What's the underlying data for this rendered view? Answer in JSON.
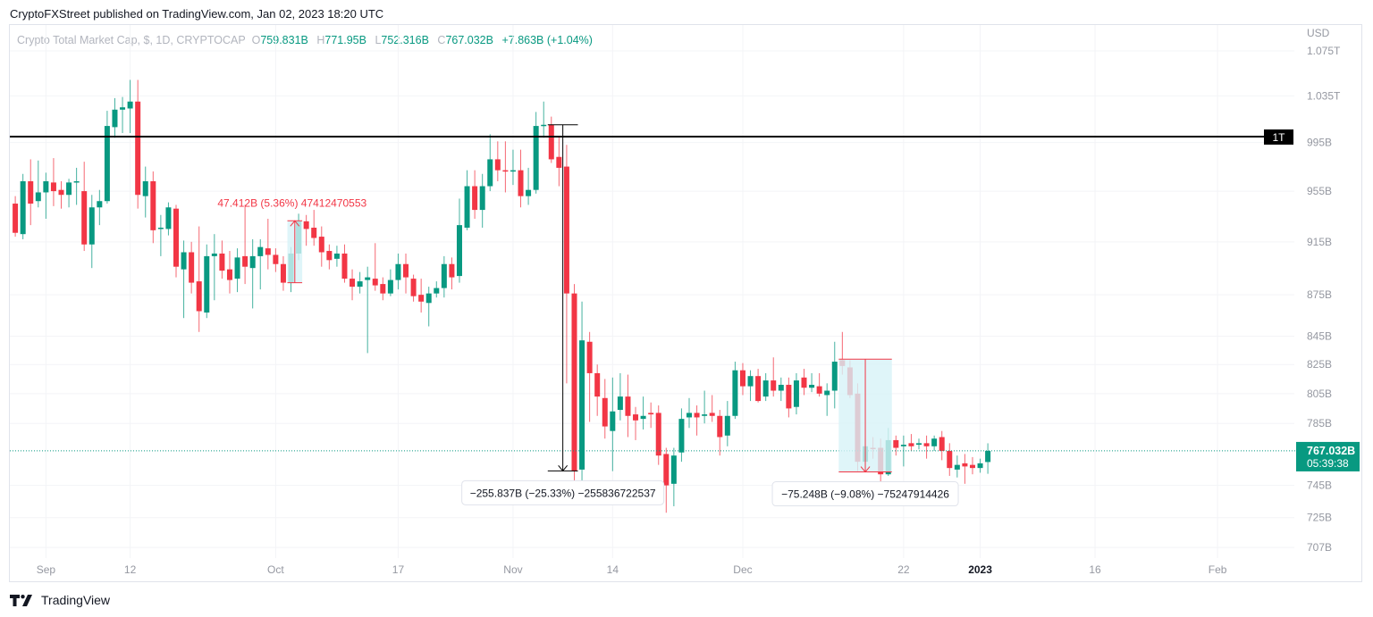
{
  "header": {
    "published": "CryptoFXStreet published on TradingView.com, Jan 02, 2023 18:20 UTC"
  },
  "legend": {
    "symbol": "Crypto Total Market Cap, $, 1D, CRYPTOCAP",
    "o_label": "O",
    "o_value": "759.831B",
    "h_label": "H",
    "h_value": "771.95B",
    "l_label": "L",
    "l_value": "752.316B",
    "c_label": "C",
    "c_value": "767.032B",
    "change": "+7.863B (+1.04%)"
  },
  "axis": {
    "currency": "USD"
  },
  "footer": {
    "brand": "TradingView"
  },
  "colors": {
    "up": "#089981",
    "down": "#f23645",
    "level_line": "#000000",
    "measure_fill": "#d7f3f8"
  },
  "chart_data": {
    "type": "candlestick",
    "interval": "1D",
    "y_scale": "log",
    "grid": "faint",
    "y_ticks": [
      {
        "value": 1075,
        "label": "1.075T"
      },
      {
        "value": 1035,
        "label": "1.035T"
      },
      {
        "value": 995,
        "label": "995B"
      },
      {
        "value": 955,
        "label": "955B"
      },
      {
        "value": 915,
        "label": "915B"
      },
      {
        "value": 875,
        "label": "875B"
      },
      {
        "value": 845,
        "label": "845B"
      },
      {
        "value": 825,
        "label": "825B"
      },
      {
        "value": 805,
        "label": "805B"
      },
      {
        "value": 785,
        "label": "785B"
      },
      {
        "value": 745,
        "label": "745B"
      },
      {
        "value": 725,
        "label": "725B"
      },
      {
        "value": 707,
        "label": "707B"
      }
    ],
    "x_ticks": [
      {
        "label": "Sep",
        "date": "2022-09-01"
      },
      {
        "label": "12",
        "date": "2022-09-12"
      },
      {
        "label": "Oct",
        "date": "2022-10-01"
      },
      {
        "label": "17",
        "date": "2022-10-17"
      },
      {
        "label": "Nov",
        "date": "2022-11-01"
      },
      {
        "label": "14",
        "date": "2022-11-14"
      },
      {
        "label": "Dec",
        "date": "2022-12-01"
      },
      {
        "label": "22",
        "date": "2022-12-22"
      },
      {
        "label": "2023",
        "date": "2023-01-01",
        "bold": true
      },
      {
        "label": "16",
        "date": "2023-01-16"
      },
      {
        "label": "Feb",
        "date": "2023-02-01"
      }
    ],
    "horizontal_level": {
      "value": 1000,
      "label": "1T"
    },
    "last_price": {
      "value": 767.032,
      "label": "767.032B",
      "countdown": "05:39:38"
    },
    "measurements": [
      {
        "from_date": "2022-10-03",
        "to_date": "2022-10-04",
        "from_value": 884,
        "to_value": 931.4,
        "label": "47.412B (5.36%) 47412470553",
        "color": "#f23645"
      },
      {
        "from_date": "2022-11-06",
        "to_date": "2022-11-09",
        "from_value": 1010,
        "to_value": 754.2,
        "label": "−255.837B (−25.33%) −255836722537",
        "color": "#000000"
      },
      {
        "from_date": "2022-12-14",
        "to_date": "2022-12-20",
        "from_value": 828.7,
        "to_value": 753.5,
        "label": "−75.248B (−9.08%) −75247914426",
        "color": "#f23645"
      }
    ],
    "candles_columns": [
      "date",
      "open",
      "high",
      "low",
      "close"
    ],
    "candles": [
      [
        "2022-08-28",
        945,
        951,
        919,
        922
      ],
      [
        "2022-08-29",
        921,
        969,
        917,
        963
      ],
      [
        "2022-08-30",
        963,
        981,
        928,
        945
      ],
      [
        "2022-08-31",
        947,
        980,
        942,
        954
      ],
      [
        "2022-09-01",
        954,
        970,
        933,
        963
      ],
      [
        "2022-09-02",
        962,
        982,
        943,
        955
      ],
      [
        "2022-09-03",
        956,
        963,
        941,
        952
      ],
      [
        "2022-09-04",
        952,
        965,
        942,
        962
      ],
      [
        "2022-09-05",
        962,
        974,
        944,
        963
      ],
      [
        "2022-09-06",
        955,
        979,
        908,
        913
      ],
      [
        "2022-09-07",
        913,
        952,
        895,
        942
      ],
      [
        "2022-09-08",
        942,
        956,
        928,
        947
      ],
      [
        "2022-09-09",
        947,
        1022,
        945,
        1009
      ],
      [
        "2022-09-10",
        1008,
        1033,
        999,
        1023
      ],
      [
        "2022-09-11",
        1023,
        1034,
        1003,
        1025
      ],
      [
        "2022-09-12",
        1024,
        1049,
        1003,
        1030
      ],
      [
        "2022-09-13",
        1030,
        1049,
        941,
        952
      ],
      [
        "2022-09-14",
        951,
        975,
        934,
        963
      ],
      [
        "2022-09-15",
        963,
        971,
        914,
        924
      ],
      [
        "2022-09-16",
        925,
        936,
        904,
        926
      ],
      [
        "2022-09-17",
        925,
        946,
        920,
        942
      ],
      [
        "2022-09-18",
        941,
        944,
        888,
        896
      ],
      [
        "2022-09-19",
        894,
        916,
        858,
        907
      ],
      [
        "2022-09-20",
        907,
        915,
        876,
        884
      ],
      [
        "2022-09-21",
        885,
        927,
        848,
        863
      ],
      [
        "2022-09-22",
        862,
        913,
        858,
        904
      ],
      [
        "2022-09-23",
        904,
        921,
        871,
        906
      ],
      [
        "2022-09-24",
        906,
        916,
        887,
        893
      ],
      [
        "2022-09-25",
        894,
        908,
        876,
        886
      ],
      [
        "2022-09-26",
        887,
        910,
        877,
        903
      ],
      [
        "2022-09-27",
        904,
        944,
        883,
        896
      ],
      [
        "2022-09-28",
        895,
        917,
        865,
        904
      ],
      [
        "2022-09-29",
        904,
        917,
        879,
        911
      ],
      [
        "2022-09-30",
        910,
        933,
        894,
        905
      ],
      [
        "2022-10-01",
        905,
        910,
        892,
        898
      ],
      [
        "2022-10-02",
        898,
        904,
        878,
        884
      ],
      [
        "2022-10-03",
        884,
        911,
        877,
        906
      ],
      [
        "2022-10-04",
        906,
        937,
        901,
        931
      ],
      [
        "2022-10-05",
        931,
        936,
        912,
        925
      ],
      [
        "2022-10-06",
        926,
        940,
        912,
        918
      ],
      [
        "2022-10-07",
        919,
        927,
        896,
        907
      ],
      [
        "2022-10-08",
        908,
        913,
        894,
        901
      ],
      [
        "2022-10-09",
        902,
        912,
        896,
        906
      ],
      [
        "2022-10-10",
        906,
        913,
        884,
        887
      ],
      [
        "2022-10-11",
        887,
        894,
        871,
        881
      ],
      [
        "2022-10-12",
        881,
        892,
        876,
        885
      ],
      [
        "2022-10-13",
        886,
        896,
        833,
        888
      ],
      [
        "2022-10-14",
        887,
        914,
        878,
        882
      ],
      [
        "2022-10-15",
        883,
        888,
        871,
        876
      ],
      [
        "2022-10-16",
        876,
        894,
        874,
        886
      ],
      [
        "2022-10-17",
        886,
        906,
        879,
        898
      ],
      [
        "2022-10-18",
        898,
        906,
        876,
        888
      ],
      [
        "2022-10-19",
        887,
        890,
        870,
        874
      ],
      [
        "2022-10-20",
        875,
        887,
        862,
        870
      ],
      [
        "2022-10-21",
        869,
        881,
        852,
        876
      ],
      [
        "2022-10-22",
        876,
        885,
        873,
        880
      ],
      [
        "2022-10-23",
        880,
        904,
        873,
        898
      ],
      [
        "2022-10-24",
        898,
        903,
        879,
        888
      ],
      [
        "2022-10-25",
        889,
        949,
        884,
        928
      ],
      [
        "2022-10-26",
        926,
        972,
        924,
        959
      ],
      [
        "2022-10-27",
        959,
        972,
        933,
        940
      ],
      [
        "2022-10-28",
        940,
        969,
        926,
        959
      ],
      [
        "2022-10-29",
        959,
        1002,
        955,
        981
      ],
      [
        "2022-10-30",
        981,
        996,
        963,
        972
      ],
      [
        "2022-10-31",
        972,
        996,
        954,
        971
      ],
      [
        "2022-11-01",
        971,
        989,
        960,
        972
      ],
      [
        "2022-11-02",
        972,
        989,
        942,
        951
      ],
      [
        "2022-11-03",
        951,
        974,
        944,
        956
      ],
      [
        "2022-11-04",
        956,
        1021,
        953,
        1009
      ],
      [
        "2022-11-05",
        1009,
        1030,
        999,
        1010
      ],
      [
        "2022-11-06",
        1010,
        1017,
        978,
        981
      ],
      [
        "2022-11-07",
        983,
        1000,
        959,
        974
      ],
      [
        "2022-11-08",
        975,
        993,
        812,
        876
      ],
      [
        "2022-11-09",
        876,
        883,
        736,
        754
      ],
      [
        "2022-11-10",
        755,
        870,
        743,
        842
      ],
      [
        "2022-11-11",
        841,
        848,
        786,
        819
      ],
      [
        "2022-11-12",
        819,
        825,
        790,
        803
      ],
      [
        "2022-11-13",
        802,
        815,
        775,
        783
      ],
      [
        "2022-11-14",
        780,
        816,
        754,
        793
      ],
      [
        "2022-11-15",
        794,
        819,
        787,
        803
      ],
      [
        "2022-11-16",
        803,
        818,
        776,
        790
      ],
      [
        "2022-11-17",
        791,
        796,
        774,
        787
      ],
      [
        "2022-11-18",
        788,
        803,
        781,
        790
      ],
      [
        "2022-11-19",
        792,
        799,
        782,
        791
      ],
      [
        "2022-11-20",
        792,
        797,
        758,
        764
      ],
      [
        "2022-11-21",
        765,
        769,
        728,
        745
      ],
      [
        "2022-11-22",
        746,
        769,
        732,
        764
      ],
      [
        "2022-11-23",
        766,
        795,
        760,
        788
      ],
      [
        "2022-11-24",
        789,
        802,
        782,
        792
      ],
      [
        "2022-11-25",
        792,
        797,
        777,
        789
      ],
      [
        "2022-11-26",
        790,
        807,
        785,
        791
      ],
      [
        "2022-11-27",
        792,
        804,
        786,
        790
      ],
      [
        "2022-11-28",
        790,
        794,
        764,
        776
      ],
      [
        "2022-11-29",
        777,
        800,
        770,
        790
      ],
      [
        "2022-11-30",
        790,
        827,
        788,
        821
      ],
      [
        "2022-12-01",
        821,
        826,
        804,
        810
      ],
      [
        "2022-12-02",
        810,
        821,
        800,
        817
      ],
      [
        "2022-12-03",
        817,
        822,
        799,
        800
      ],
      [
        "2022-12-04",
        803,
        819,
        800,
        814
      ],
      [
        "2022-12-05",
        814,
        830,
        803,
        807
      ],
      [
        "2022-12-06",
        807,
        816,
        800,
        811
      ],
      [
        "2022-12-07",
        811,
        816,
        789,
        795
      ],
      [
        "2022-12-08",
        796,
        819,
        791,
        814
      ],
      [
        "2022-12-09",
        816,
        822,
        804,
        809
      ],
      [
        "2022-12-10",
        809,
        819,
        806,
        811
      ],
      [
        "2022-12-11",
        810,
        819,
        803,
        805
      ],
      [
        "2022-12-12",
        804,
        812,
        790,
        807
      ],
      [
        "2022-12-13",
        807,
        841,
        795,
        827
      ],
      [
        "2022-12-14",
        828,
        848,
        818,
        824
      ],
      [
        "2022-12-15",
        823,
        828,
        802,
        804
      ],
      [
        "2022-12-16",
        805,
        812,
        754,
        760
      ],
      [
        "2022-12-17",
        760,
        775,
        754,
        770
      ],
      [
        "2022-12-18",
        769,
        776,
        762,
        768.5
      ],
      [
        "2022-12-19",
        769,
        775,
        744,
        752
      ],
      [
        "2022-12-20",
        752,
        782,
        751,
        774
      ],
      [
        "2022-12-21",
        774,
        777,
        764,
        769
      ],
      [
        "2022-12-22",
        770,
        777,
        757,
        771
      ],
      [
        "2022-12-23",
        772,
        778,
        767,
        770
      ],
      [
        "2022-12-24",
        771,
        775,
        768,
        772
      ],
      [
        "2022-12-25",
        772,
        777,
        762,
        770
      ],
      [
        "2022-12-26",
        770,
        777,
        767,
        775
      ],
      [
        "2022-12-27",
        776,
        780,
        761,
        767
      ],
      [
        "2022-12-28",
        767,
        772,
        751,
        756
      ],
      [
        "2022-12-29",
        755,
        764,
        750,
        758
      ],
      [
        "2022-12-30",
        759,
        765,
        746,
        757
      ],
      [
        "2022-12-31",
        758,
        763,
        752,
        756
      ],
      [
        "2023-01-01",
        756,
        762,
        753,
        759
      ],
      [
        "2023-01-02",
        759.831,
        771.95,
        752.316,
        767.032
      ]
    ]
  }
}
